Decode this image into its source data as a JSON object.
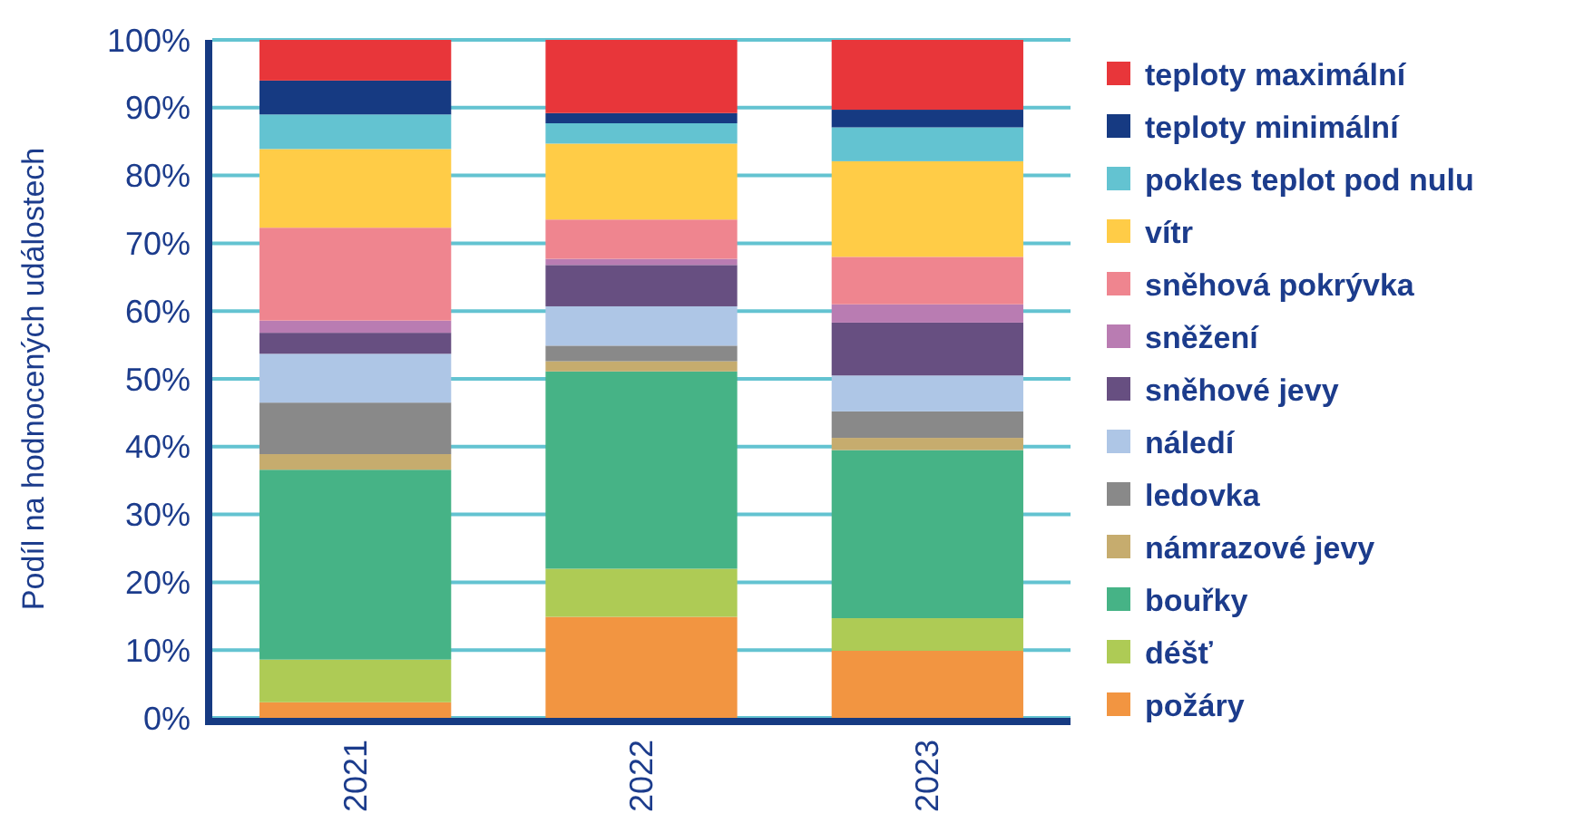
{
  "chart_data": {
    "type": "bar",
    "stacked": true,
    "ylabel": "Podíl na hodnocených událostech",
    "categories": [
      "2021",
      "2022",
      "2023"
    ],
    "series": [
      {
        "name": "požáry",
        "color": "#f29541",
        "values": [
          2.3,
          14.9,
          9.9
        ]
      },
      {
        "name": "déšť",
        "color": "#aecb55",
        "values": [
          6.3,
          7.1,
          4.8
        ]
      },
      {
        "name": "bouřky",
        "color": "#46b386",
        "values": [
          28.0,
          29.1,
          24.8
        ]
      },
      {
        "name": "námrazové jevy",
        "color": "#c6ac6e",
        "values": [
          2.3,
          1.5,
          1.8
        ]
      },
      {
        "name": "ledovka",
        "color": "#898989",
        "values": [
          7.6,
          2.3,
          3.9
        ]
      },
      {
        "name": "náledí",
        "color": "#aec6e6",
        "values": [
          7.2,
          5.8,
          5.3
        ]
      },
      {
        "name": "sněhové jevy",
        "color": "#674f81",
        "values": [
          3.1,
          6.1,
          7.8
        ]
      },
      {
        "name": "sněžení",
        "color": "#b97cb2",
        "values": [
          1.8,
          0.9,
          2.7
        ]
      },
      {
        "name": "sněhová pokrývka",
        "color": "#ef858f",
        "values": [
          13.7,
          5.8,
          7.0
        ]
      },
      {
        "name": "vítr",
        "color": "#ffcc47",
        "values": [
          11.6,
          11.2,
          14.1
        ]
      },
      {
        "name": "pokles teplot pod nulu",
        "color": "#63c3d1",
        "values": [
          5.1,
          3.0,
          5.0
        ]
      },
      {
        "name": "teploty minimální",
        "color": "#163a82",
        "values": [
          5.0,
          1.5,
          2.6
        ]
      },
      {
        "name": "teploty maximální",
        "color": "#e8363a",
        "values": [
          6.0,
          10.8,
          10.3
        ]
      }
    ],
    "ylim": [
      0,
      100
    ],
    "yticks": [
      {
        "value": 0,
        "label": "0%"
      },
      {
        "value": 10,
        "label": "10%"
      },
      {
        "value": 20,
        "label": "20%"
      },
      {
        "value": 30,
        "label": "30%"
      },
      {
        "value": 40,
        "label": "40%"
      },
      {
        "value": 50,
        "label": "50%"
      },
      {
        "value": 60,
        "label": "60%"
      },
      {
        "value": 70,
        "label": "70%"
      },
      {
        "value": 80,
        "label": "80%"
      },
      {
        "value": 90,
        "label": "90%"
      },
      {
        "value": 100,
        "label": "100%"
      }
    ],
    "grid": "y",
    "legend": "right"
  }
}
